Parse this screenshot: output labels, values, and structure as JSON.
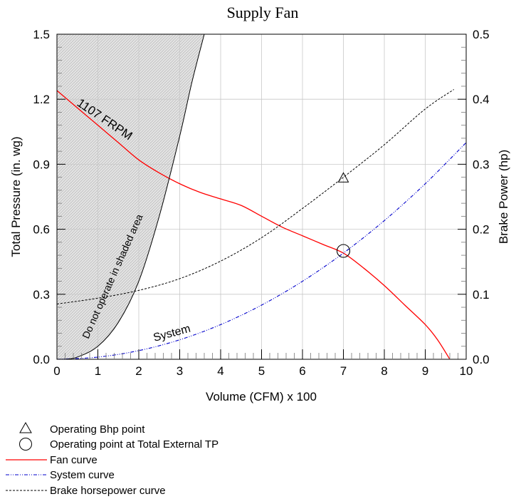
{
  "chart_data": {
    "type": "line",
    "title": "Supply Fan",
    "xlabel": "Volume (CFM) x 100",
    "ylabel_left": "Total Pressure (in. wg)",
    "ylabel_right": "Brake Power (hp)",
    "xlim": [
      0,
      10
    ],
    "ylim_left": [
      0,
      1.5
    ],
    "ylim_right": [
      0,
      0.5
    ],
    "x_ticks": [
      "0",
      "1",
      "2",
      "3",
      "4",
      "5",
      "6",
      "7",
      "8",
      "9",
      "10"
    ],
    "y_left_ticks": [
      "0.0",
      "0.3",
      "0.6",
      "0.9",
      "1.2",
      "1.5"
    ],
    "y_right_ticks": [
      "0.0",
      "0.1",
      "0.2",
      "0.3",
      "0.4",
      "0.5"
    ],
    "grid": true,
    "annotations": {
      "rpm": "1107  FRPM",
      "shaded": "Do not operate in shaded area",
      "system": "System"
    },
    "series": [
      {
        "name": "Fan curve",
        "axis": "left",
        "color": "#ff0000",
        "x": [
          0,
          0.5,
          1,
          1.5,
          2,
          2.5,
          3,
          3.5,
          4,
          4.5,
          5,
          5.5,
          6,
          6.5,
          7,
          7.5,
          8,
          8.5,
          9,
          9.3,
          9.6
        ],
        "y": [
          1.24,
          1.16,
          1.08,
          1.0,
          0.92,
          0.86,
          0.81,
          0.77,
          0.74,
          0.71,
          0.66,
          0.61,
          0.57,
          0.53,
          0.49,
          0.42,
          0.34,
          0.25,
          0.16,
          0.09,
          0.0
        ]
      },
      {
        "name": "System curve",
        "axis": "left",
        "color": "#0000cc",
        "x": [
          0,
          1,
          2,
          3,
          4,
          5,
          6,
          7,
          8,
          9,
          10
        ],
        "y": [
          0.0,
          0.01,
          0.04,
          0.09,
          0.16,
          0.25,
          0.36,
          0.49,
          0.64,
          0.81,
          1.0
        ]
      },
      {
        "name": "Brake horsepower curve",
        "axis": "right",
        "color": "#000000",
        "x": [
          0,
          1,
          2,
          3,
          4,
          5,
          6,
          7,
          8,
          9,
          9.7
        ],
        "y": [
          0.085,
          0.094,
          0.106,
          0.124,
          0.151,
          0.187,
          0.232,
          0.28,
          0.33,
          0.385,
          0.415
        ]
      },
      {
        "name": "Shaded region boundary",
        "axis": "left",
        "color": "#000000",
        "x": [
          0.2,
          0.5,
          1,
          1.5,
          2,
          2.5,
          3,
          3.3,
          3.6
        ],
        "y": [
          0.0,
          0.01,
          0.06,
          0.17,
          0.36,
          0.66,
          1.03,
          1.28,
          1.5
        ]
      }
    ],
    "points": [
      {
        "name": "Operating Bhp point",
        "marker": "triangle",
        "axis": "right",
        "x": 7,
        "y": 0.277
      },
      {
        "name": "Operating point at Total External TP",
        "marker": "circle",
        "axis": "left",
        "x": 7,
        "y": 0.5
      }
    ],
    "legend": {
      "placement": "bottom-left",
      "items": [
        {
          "label": "Operating Bhp point",
          "icon": "triangle-icon"
        },
        {
          "label": "Operating point at Total External TP",
          "icon": "circle-icon"
        },
        {
          "label": "Fan curve",
          "line": "solid",
          "color": "#ff0000"
        },
        {
          "label": "System curve",
          "line": "dash-dot",
          "color": "#0000cc"
        },
        {
          "label": "Brake horsepower curve",
          "line": "dashed",
          "color": "#000000"
        }
      ]
    }
  }
}
